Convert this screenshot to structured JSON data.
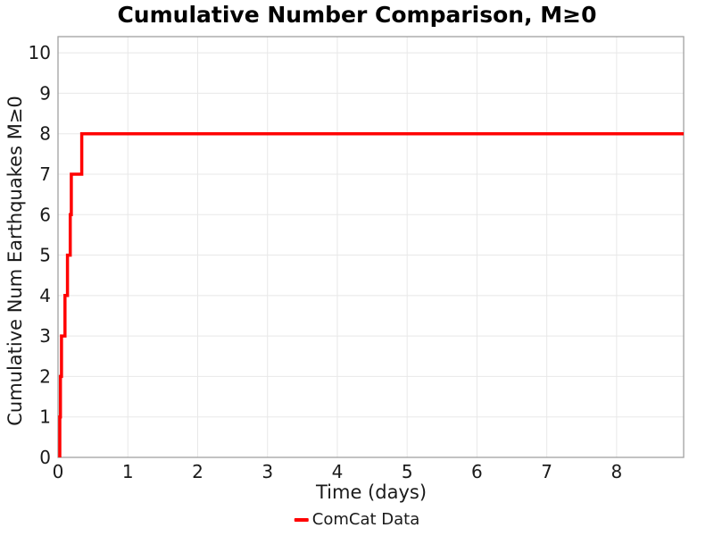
{
  "title": "Cumulative Number Comparison, M≥0",
  "axes": {
    "xlabel": "Time (days)",
    "ylabel": "Cumulative Num Earthquakes M≥0"
  },
  "legend": {
    "items": [
      {
        "label": "ComCat Data",
        "color": "#ff0000"
      }
    ]
  },
  "chart_data": {
    "type": "line",
    "subtype": "cumulative-step",
    "title": "Cumulative Number Comparison, M≥0",
    "xlabel": "Time (days)",
    "ylabel": "Cumulative Num Earthquakes M≥0",
    "xlim": [
      0,
      8.96
    ],
    "ylim": [
      0,
      10.4
    ],
    "xticks": [
      0,
      1,
      2,
      3,
      4,
      5,
      6,
      7,
      8
    ],
    "yticks": [
      0,
      1,
      2,
      3,
      4,
      5,
      6,
      7,
      8,
      9,
      10
    ],
    "grid": true,
    "legend_position": "bottom-center-below-xlabel",
    "series": [
      {
        "name": "ComCat Data",
        "color": "#ff0000",
        "line_width": 3.5,
        "event_times_days": [
          0.025,
          0.035,
          0.05,
          0.1,
          0.135,
          0.175,
          0.19,
          0.34
        ],
        "cumulative_counts": [
          1,
          2,
          3,
          4,
          5,
          6,
          7,
          8
        ],
        "final_count": 8,
        "line_extends_to_x": 8.96
      }
    ],
    "colors": {
      "grid": "#e8e8e8",
      "spine": "#a0a0a0",
      "text": "#1a1a1a"
    }
  }
}
